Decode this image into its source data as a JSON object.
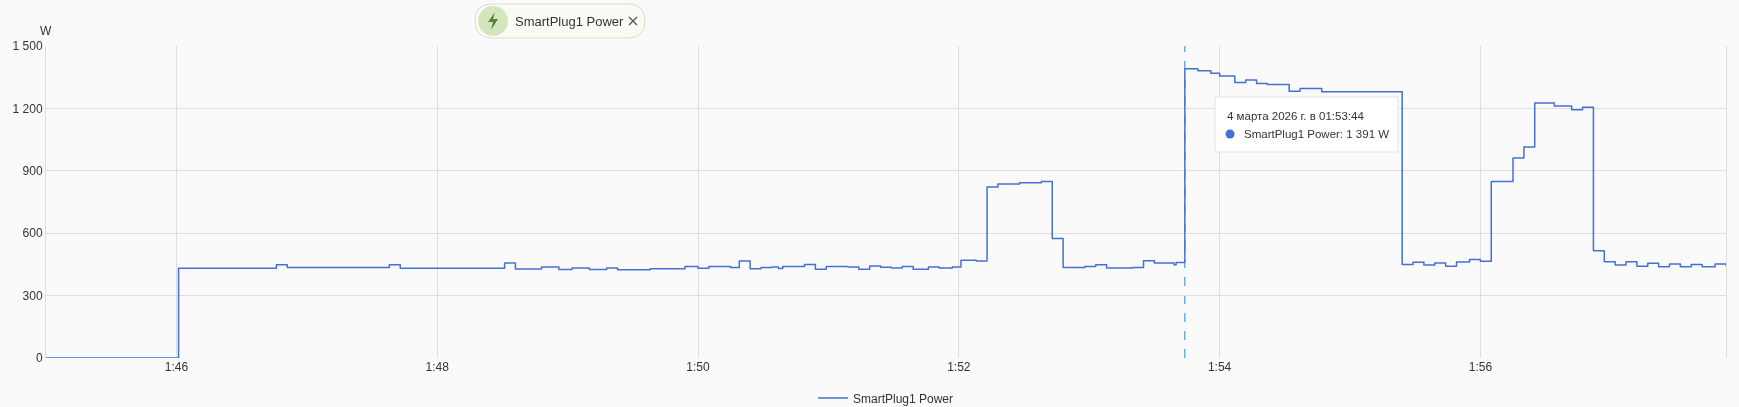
{
  "chart_data": {
    "type": "step",
    "ylabel": "W",
    "x": [
      "2026-03-04T01:45:00",
      "2026-03-04T01:46:01",
      "2026-03-04T01:46:46",
      "2026-03-04T01:46:51",
      "2026-03-04T01:47:38",
      "2026-03-04T01:47:43",
      "2026-03-04T01:48:31",
      "2026-03-04T01:48:36",
      "2026-03-04T01:48:48",
      "2026-03-04T01:48:56",
      "2026-03-04T01:49:02",
      "2026-03-04T01:49:10",
      "2026-03-04T01:49:18",
      "2026-03-04T01:49:23",
      "2026-03-04T01:49:38",
      "2026-03-04T01:49:54",
      "2026-03-04T01:50:00",
      "2026-03-04T01:50:05",
      "2026-03-04T01:50:15",
      "2026-03-04T01:50:19",
      "2026-03-04T01:50:24",
      "2026-03-04T01:50:29",
      "2026-03-04T01:50:34",
      "2026-03-04T01:50:37",
      "2026-03-04T01:50:39",
      "2026-03-04T01:50:49",
      "2026-03-04T01:50:54",
      "2026-03-04T01:50:59",
      "2026-03-04T01:51:09",
      "2026-03-04T01:51:14",
      "2026-03-04T01:51:19",
      "2026-03-04T01:51:24",
      "2026-03-04T01:51:29",
      "2026-03-04T01:51:34",
      "2026-03-04T01:51:39",
      "2026-03-04T01:51:46",
      "2026-03-04T01:51:51",
      "2026-03-04T01:51:57",
      "2026-03-04T01:52:01",
      "2026-03-04T01:52:08",
      "2026-03-04T01:52:13",
      "2026-03-04T01:52:18",
      "2026-03-04T01:52:28",
      "2026-03-04T01:52:38",
      "2026-03-04T01:52:43",
      "2026-03-04T01:52:48",
      "2026-03-04T01:52:58",
      "2026-03-04T01:53:03",
      "2026-03-04T01:53:08",
      "2026-03-04T01:53:20",
      "2026-03-04T01:53:25",
      "2026-03-04T01:53:30",
      "2026-03-04T01:53:39",
      "2026-03-04T01:53:40",
      "2026-03-04T01:53:44",
      "2026-03-04T01:53:50",
      "2026-03-04T01:53:56",
      "2026-03-04T01:54:00",
      "2026-03-04T01:54:07",
      "2026-03-04T01:54:12",
      "2026-03-04T01:54:17",
      "2026-03-04T01:54:22",
      "2026-03-04T01:54:32",
      "2026-03-04T01:54:37",
      "2026-03-04T01:54:47",
      "2026-03-04T01:55:24",
      "2026-03-04T01:55:29",
      "2026-03-04T01:55:34",
      "2026-03-04T01:55:39",
      "2026-03-04T01:55:44",
      "2026-03-04T01:55:49",
      "2026-03-04T01:55:55",
      "2026-03-04T01:56:00",
      "2026-03-04T01:56:05",
      "2026-03-04T01:56:15",
      "2026-03-04T01:56:20",
      "2026-03-04T01:56:25",
      "2026-03-04T01:56:34",
      "2026-03-04T01:56:42",
      "2026-03-04T01:56:47",
      "2026-03-04T01:56:52",
      "2026-03-04T01:56:57",
      "2026-03-04T01:57:02",
      "2026-03-04T01:57:07",
      "2026-03-04T01:57:12",
      "2026-03-04T01:57:17",
      "2026-03-04T01:57:22",
      "2026-03-04T01:57:27",
      "2026-03-04T01:57:32",
      "2026-03-04T01:57:37",
      "2026-03-04T01:57:42",
      "2026-03-04T01:57:48",
      "2026-03-04T01:57:53"
    ],
    "series": [
      {
        "name": "SmartPlug1 Power",
        "color": "#4470d4",
        "values": [
          0,
          431,
          448,
          435,
          448,
          431,
          457,
          428,
          437,
          426,
          433,
          426,
          433,
          424,
          429,
          440,
          432,
          440,
          435,
          466,
          429,
          435,
          438,
          430,
          440,
          450,
          427,
          440,
          437,
          427,
          442,
          436,
          433,
          440,
          427,
          438,
          433,
          437,
          470,
          466,
          822,
          837,
          843,
          849,
          575,
          435,
          440,
          448,
          433,
          435,
          468,
          457,
          448,
          459,
          1391,
          1381,
          1369,
          1356,
          1324,
          1337,
          1320,
          1315,
          1282,
          1296,
          1280,
          450,
          460,
          447,
          457,
          441,
          461,
          473,
          465,
          848,
          961,
          1015,
          1226,
          1212,
          1194,
          1205,
          516,
          463,
          447,
          463,
          441,
          455,
          439,
          452,
          439,
          450,
          439,
          452,
          443
        ]
      }
    ],
    "xlim": [
      "2026-03-04T01:45",
      "2026-03-04T01:57:53"
    ],
    "xticks": [
      {
        "value": "2026-03-04T01:46",
        "label": "1:46"
      },
      {
        "value": "2026-03-04T01:48",
        "label": "1:48"
      },
      {
        "value": "2026-03-04T01:50",
        "label": "1:50"
      },
      {
        "value": "2026-03-04T01:52",
        "label": "1:52"
      },
      {
        "value": "2026-03-04T01:54",
        "label": "1:54"
      },
      {
        "value": "2026-03-04T01:56",
        "label": "1:56"
      }
    ],
    "ylim": [
      0,
      1500
    ],
    "yticks": [
      0,
      300,
      600,
      900,
      {
        "value": 1200,
        "label": "1 200"
      },
      {
        "value": 1500,
        "label": "1 500"
      }
    ],
    "ref_lines": [
      {
        "axis": "x",
        "value": "2026-03-04T01:53:44",
        "color": "#1e90c8",
        "line_style": "dashed"
      }
    ],
    "annotations": [
      "SmartPlug1 Power",
      "4 марта 2026 г. в 01:53:44",
      "SmartPlug1 Power: 1 391 W"
    ],
    "legend": "bottom",
    "grid": true
  }
}
